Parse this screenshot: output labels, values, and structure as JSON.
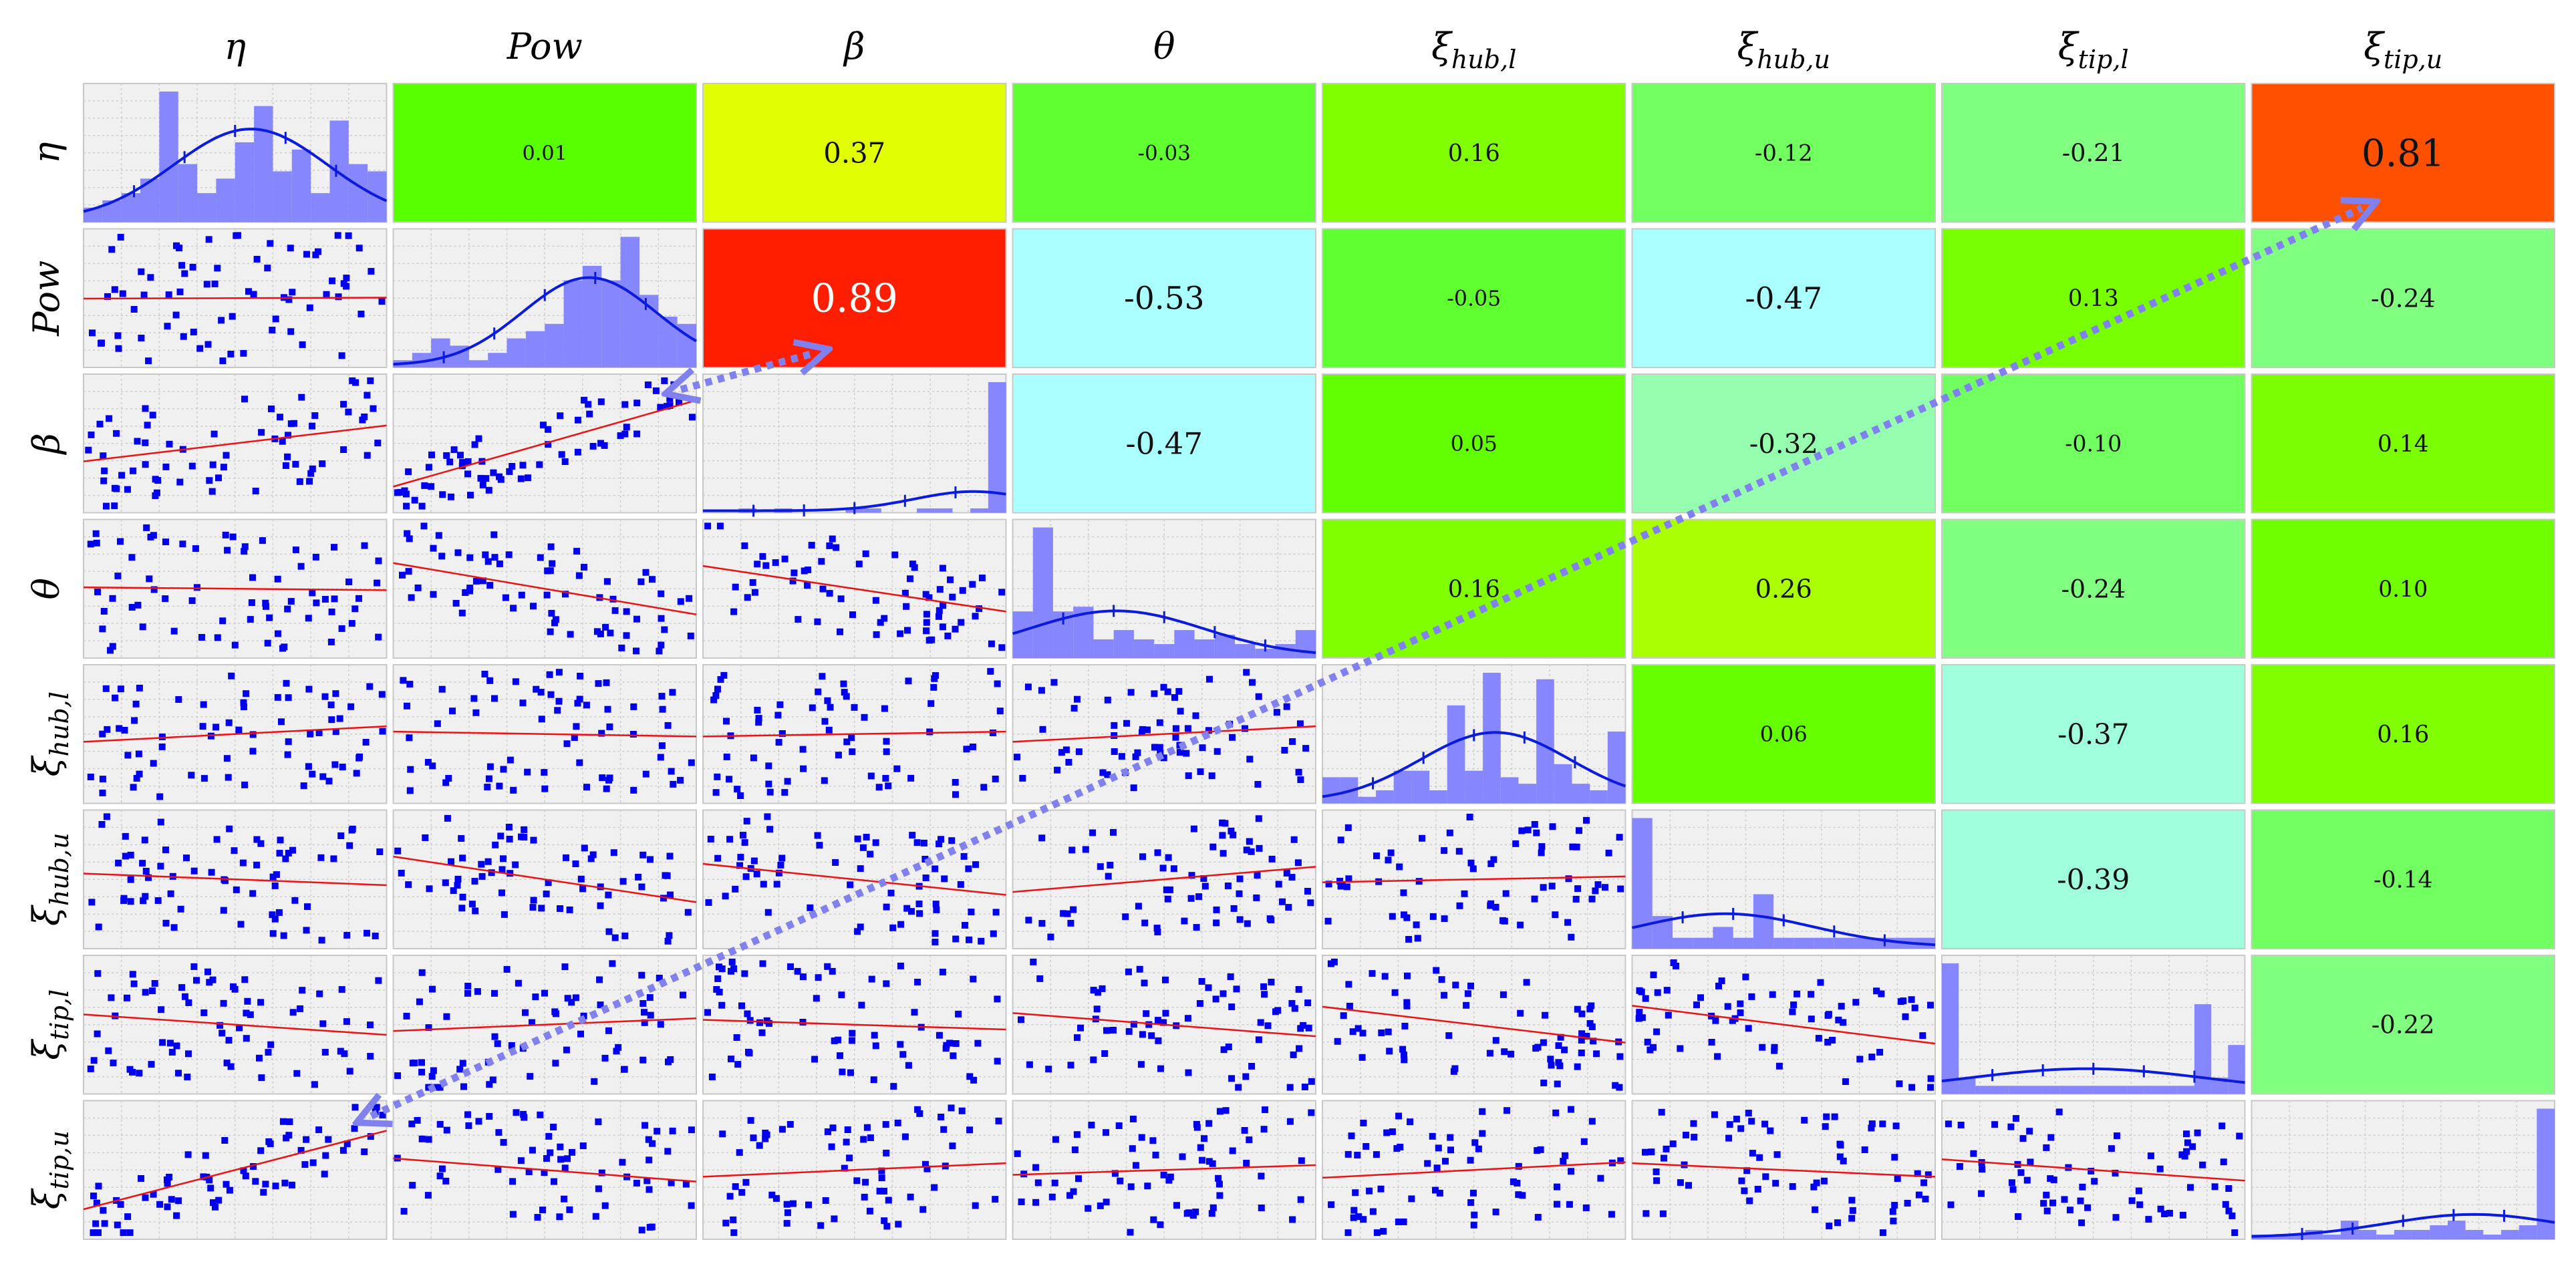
{
  "chart_data": {
    "type": "scatter-matrix",
    "variables": [
      {
        "base": "η",
        "sub": ""
      },
      {
        "base": "Pow",
        "sub": ""
      },
      {
        "base": "β",
        "sub": ""
      },
      {
        "base": "θ",
        "sub": ""
      },
      {
        "base": "ξ",
        "sub": "hub,l"
      },
      {
        "base": "ξ",
        "sub": "hub,u"
      },
      {
        "base": "ξ",
        "sub": "tip,l"
      },
      {
        "base": "ξ",
        "sub": "tip,u"
      }
    ],
    "correlations": [
      [
        null,
        "0.01",
        "0.37",
        "-0.03",
        "0.16",
        "-0.12",
        "-0.21",
        "0.81"
      ],
      [
        null,
        null,
        "0.89",
        "-0.53",
        "-0.05",
        "-0.47",
        "0.13",
        "-0.24"
      ],
      [
        null,
        null,
        null,
        "-0.47",
        "0.05",
        "-0.32",
        "-0.10",
        "0.14"
      ],
      [
        null,
        null,
        null,
        null,
        "0.16",
        "0.26",
        "-0.24",
        "0.10"
      ],
      [
        null,
        null,
        null,
        null,
        null,
        "0.06",
        "-0.37",
        "0.16"
      ],
      [
        null,
        null,
        null,
        null,
        null,
        null,
        "-0.39",
        "-0.14"
      ],
      [
        null,
        null,
        null,
        null,
        null,
        null,
        null,
        "-0.22"
      ],
      [
        null,
        null,
        null,
        null,
        null,
        null,
        null,
        null
      ]
    ],
    "histograms": [
      [
        2,
        3,
        4,
        6,
        18,
        8,
        4,
        6,
        11,
        16,
        7,
        10,
        4,
        14,
        8,
        7
      ],
      [
        1,
        2,
        4,
        3,
        1,
        2,
        4,
        5,
        6,
        12,
        14,
        12,
        18,
        10,
        7,
        6
      ],
      [
        0,
        0,
        1,
        0,
        1,
        0,
        0,
        0,
        1,
        1,
        0,
        0,
        1,
        1,
        0,
        1,
        30
      ],
      [
        10,
        28,
        10,
        11,
        4,
        6,
        4,
        3,
        6,
        4,
        5,
        3,
        2,
        3,
        6
      ],
      [
        4,
        4,
        1,
        2,
        5,
        5,
        2,
        15,
        5,
        20,
        4,
        3,
        19,
        6,
        3,
        2,
        11
      ],
      [
        12,
        3,
        1,
        1,
        2,
        1,
        5,
        1,
        1,
        1,
        1,
        1,
        1,
        1,
        1
      ],
      [
        16,
        2,
        1,
        1,
        1,
        1,
        1,
        1,
        1,
        1,
        1,
        1,
        1,
        1,
        1,
        11,
        2,
        6
      ],
      [
        1,
        1,
        1,
        2,
        1,
        4,
        2,
        1,
        2,
        2,
        3,
        4,
        2,
        1,
        2,
        3,
        28
      ]
    ],
    "fit_slopes": [
      0,
      0.37,
      0.89,
      -0.53,
      -0.05,
      -0.47,
      0.13,
      -0.24
    ],
    "annotations": [
      {
        "type": "double-arrow",
        "style": "dotted",
        "color": "#8080ee",
        "from_cell": [
          2,
          1
        ],
        "to_cell": [
          1,
          2
        ]
      },
      {
        "type": "double-arrow",
        "style": "dotted",
        "color": "#8080ee",
        "from_cell": [
          7,
          0
        ],
        "to_cell": [
          0,
          7
        ]
      }
    ],
    "colors": {
      "scatter_points": "#0000ee",
      "fit_line": "#ee1111",
      "histogram_bars": "#8080ff",
      "density_curve": "#0a1adf",
      "cell_background": "#f0f0f0",
      "gridline": "#cccccc",
      "cell_border": "#c8c8c8"
    }
  }
}
